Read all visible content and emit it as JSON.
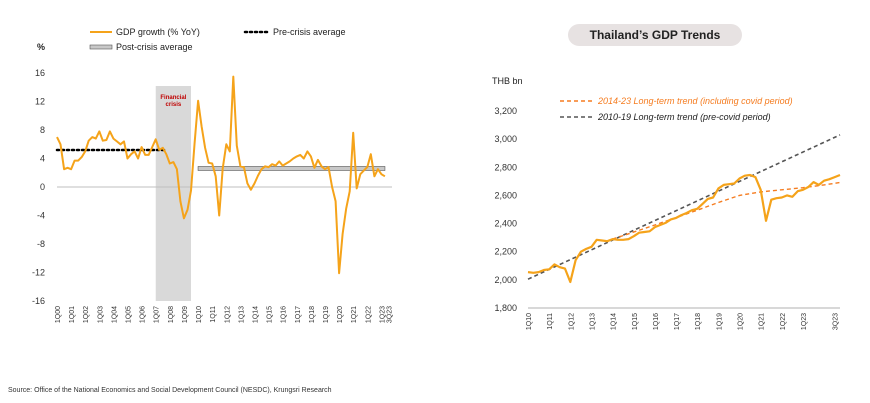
{
  "source": "Source: Office of the National Economics and Social Development Council (NESDC), Krungsri Research",
  "chart_data": [
    {
      "type": "line",
      "ylabel": "%",
      "ylim": [
        -16,
        16
      ],
      "yticks": [
        16,
        12,
        8,
        4,
        0,
        -4,
        -8,
        -12,
        -16
      ],
      "xtick_labels": [
        "1Q00",
        "1Q01",
        "1Q02",
        "1Q03",
        "1Q04",
        "1Q05",
        "1Q06",
        "1Q07",
        "1Q08",
        "1Q09",
        "1Q10",
        "1Q11",
        "1Q12",
        "1Q13",
        "1Q14",
        "1Q15",
        "1Q16",
        "1Q17",
        "1Q18",
        "1Q19",
        "1Q20",
        "1Q21",
        "1Q22",
        "1Q23",
        "3Q23"
      ],
      "shaded_region": {
        "label": "Financial crisis",
        "from_quarter": 28,
        "to_quarter": 38,
        "color": "#d9d9d9"
      },
      "legend": {
        "placement": "top-left",
        "entries": [
          "GDP growth (% YoY)",
          "Pre-crisis average",
          "Post-crisis average"
        ]
      },
      "series": [
        {
          "name": "GDP growth (% YoY)",
          "color": "#f5a31a",
          "values": [
            7.0,
            6.0,
            2.5,
            2.7,
            2.5,
            3.7,
            3.7,
            4.2,
            5.0,
            6.5,
            7.0,
            6.8,
            7.8,
            6.5,
            6.6,
            7.8,
            6.8,
            6.4,
            6.0,
            6.4,
            4.0,
            4.6,
            5.0,
            4.0,
            5.6,
            4.5,
            4.5,
            5.6,
            6.7,
            5.2,
            5.5,
            4.6,
            3.3,
            3.5,
            2.5,
            -2.0,
            -4.4,
            -3.2,
            -0.5,
            6.0,
            12.1,
            8.5,
            5.5,
            3.4,
            3.3,
            1.5,
            -4.0,
            2.6,
            6.0,
            5.0,
            15.5,
            5.8,
            2.9,
            2.8,
            0.5,
            -0.4,
            0.5,
            1.6,
            2.5,
            2.9,
            2.8,
            3.2,
            3.0,
            3.6,
            3.0,
            3.3,
            3.6,
            4.0,
            4.3,
            4.5,
            4.0,
            5.0,
            4.3,
            2.7,
            3.8,
            2.9,
            2.5,
            2.8,
            0.0,
            -2.0,
            -12.1,
            -6.6,
            -3.0,
            -0.6,
            7.6,
            -0.2,
            1.8,
            2.3,
            2.8,
            4.6,
            1.5,
            2.5,
            1.8,
            1.5
          ],
          "quarters_start": "1Q00"
        },
        {
          "name": "Pre-crisis average",
          "style": "dotted",
          "color": "#000000",
          "value": 5.2,
          "from_quarter": 0,
          "to_quarter": 31
        },
        {
          "name": "Post-crisis average",
          "style": "bar",
          "color": "#c8c8c8",
          "value": 2.6,
          "from_quarter": 40,
          "to_quarter": 93
        }
      ]
    },
    {
      "type": "line",
      "title": "Thailand’s GDP Trends",
      "ylabel": "THB bn",
      "ylim": [
        1800,
        3200
      ],
      "yticks": [
        "3,200",
        "3,000",
        "2,800",
        "2,600",
        "2,400",
        "2,200",
        "2,000",
        "1,800"
      ],
      "ytick_values": [
        3200,
        3000,
        2800,
        2600,
        2400,
        2200,
        2000,
        1800
      ],
      "xtick_labels": [
        "1Q10",
        "1Q11",
        "1Q12",
        "1Q13",
        "1Q14",
        "1Q15",
        "1Q16",
        "1Q17",
        "1Q18",
        "1Q19",
        "1Q20",
        "1Q21",
        "1Q22",
        "1Q23",
        "3Q23"
      ],
      "legend": {
        "placement": "top-left",
        "entries": [
          "2014-23 Long-term trend (including covid period)",
          "2010-19 Long-term trend (pre-covid period)"
        ]
      },
      "series": [
        {
          "name": "GDP",
          "color": "#f5a31a",
          "values": [
            2055,
            2050,
            2055,
            2070,
            2075,
            2110,
            2090,
            2080,
            1985,
            2140,
            2200,
            2220,
            2235,
            2285,
            2280,
            2275,
            2290,
            2285,
            2285,
            2290,
            2310,
            2335,
            2340,
            2345,
            2375,
            2390,
            2405,
            2430,
            2440,
            2460,
            2475,
            2495,
            2505,
            2540,
            2575,
            2585,
            2650,
            2675,
            2680,
            2685,
            2720,
            2740,
            2745,
            2730,
            2640,
            2420,
            2570,
            2580,
            2585,
            2600,
            2590,
            2630,
            2640,
            2660,
            2695,
            2675,
            2705,
            2715,
            2730,
            2745
          ],
          "quarters_start": "1Q10"
        },
        {
          "name": "2014-23 Long-term trend (including covid period)",
          "style": "dashed",
          "color": "#f57c20",
          "x_quarter": [
            16,
            24,
            32,
            36,
            40,
            44,
            48,
            52,
            56,
            59
          ],
          "values": [
            2290,
            2390,
            2495,
            2550,
            2600,
            2625,
            2640,
            2655,
            2675,
            2692
          ]
        },
        {
          "name": "2010-19 Long-term trend (pre-covid period)",
          "style": "dashed",
          "color": "#555555",
          "x_quarter": [
            0,
            59
          ],
          "values": [
            2005,
            3030
          ]
        }
      ]
    }
  ]
}
